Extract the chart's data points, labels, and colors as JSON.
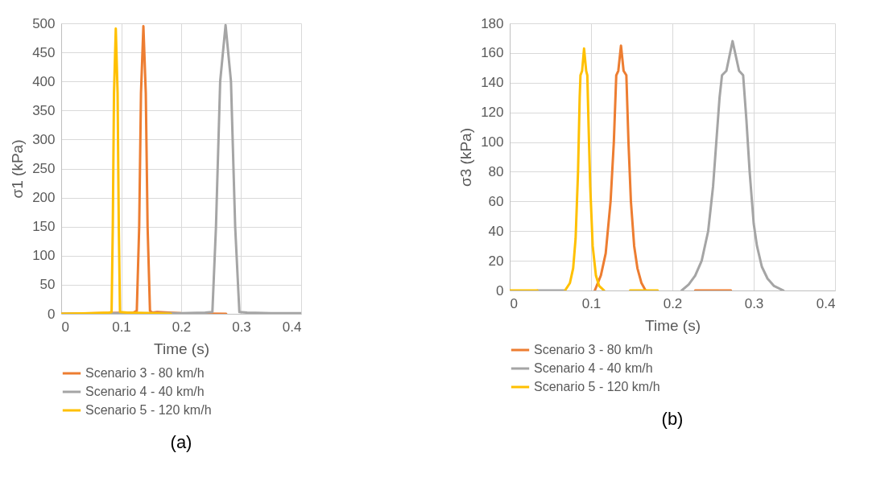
{
  "chart_data": [
    {
      "type": "line",
      "xlabel": "Time (s)",
      "ylabel": "σ1 (kPa)",
      "xlim": [
        0,
        0.4
      ],
      "xticks": [
        0,
        0.1,
        0.2,
        0.3,
        0.4
      ],
      "ylim": [
        0,
        500
      ],
      "yticks": [
        0,
        50,
        100,
        150,
        200,
        250,
        300,
        350,
        400,
        450,
        500
      ],
      "grid": true,
      "legend": "bottom",
      "annotations": [
        "(a)"
      ],
      "series": [
        {
          "name": "Scenario 3 - 80 km/h",
          "color": "#ed7d31",
          "x": [
            0,
            0.06,
            0.12,
            0.126,
            0.13,
            0.133,
            0.137,
            0.141,
            0.144,
            0.148,
            0.152,
            0.16,
            0.2,
            0.275
          ],
          "values": [
            0,
            1,
            2,
            5,
            150,
            380,
            495,
            380,
            150,
            5,
            2,
            3,
            1,
            0
          ]
        },
        {
          "name": "Scenario 4 - 40 km/h",
          "color": "#a5a5a5",
          "x": [
            0,
            0.1,
            0.2,
            0.24,
            0.252,
            0.258,
            0.265,
            0.274,
            0.283,
            0.29,
            0.297,
            0.31,
            0.35,
            0.4
          ],
          "values": [
            0,
            1,
            1,
            2,
            3,
            150,
            400,
            497,
            400,
            150,
            3,
            2,
            1,
            1
          ]
        },
        {
          "name": "Scenario 5 - 120 km/h",
          "color": "#ffc000",
          "x": [
            0,
            0.05,
            0.08,
            0.084,
            0.086,
            0.088,
            0.091,
            0.094,
            0.096,
            0.098,
            0.11,
            0.15,
            0.183
          ],
          "values": [
            0,
            1,
            2,
            3,
            150,
            380,
            491,
            380,
            150,
            3,
            2,
            1,
            0
          ]
        }
      ]
    },
    {
      "type": "line",
      "xlabel": "Time (s)",
      "ylabel": "σ3 (kPa)",
      "xlim": [
        0,
        0.4
      ],
      "xticks": [
        0,
        0.1,
        0.2,
        0.3,
        0.4
      ],
      "ylim": [
        0,
        180
      ],
      "yticks": [
        0,
        20,
        40,
        60,
        80,
        100,
        120,
        140,
        160,
        180
      ],
      "grid": true,
      "legend": "bottom",
      "annotations": [
        "(b)"
      ],
      "series": [
        {
          "name": "Scenario 3 - 80 km/h",
          "color": "#ed7d31",
          "x": [
            0.1046,
            0.112,
            0.118,
            0.124,
            0.128,
            0.131,
            0.1335,
            0.1368,
            0.14,
            0.1434,
            0.146,
            0.149,
            0.153,
            0.157,
            0.162,
            0.167,
            0.2,
            0.228,
            0.272
          ],
          "values": [
            0,
            10,
            25,
            60,
            100,
            145,
            148,
            165,
            148,
            145,
            100,
            60,
            30,
            15,
            5,
            0,
            null,
            0,
            0
          ]
        },
        {
          "name": "Scenario 4 - 40 km/h",
          "color": "#a5a5a5",
          "x": [
            0.034,
            0.068,
            0.14,
            0.2115,
            0.22,
            0.228,
            0.236,
            0.244,
            0.25,
            0.254,
            0.258,
            0.261,
            0.2664,
            0.274,
            0.282,
            0.287,
            0.291,
            0.295,
            0.3,
            0.304,
            0.31,
            0.317,
            0.325,
            0.3365
          ],
          "values": [
            0,
            0,
            null,
            0,
            4,
            10,
            20,
            40,
            70,
            100,
            130,
            145,
            148,
            168,
            148,
            145,
            115,
            80,
            45,
            30,
            16,
            8,
            3,
            0
          ]
        },
        {
          "name": "Scenario 5 - 120 km/h",
          "color": "#ffc000",
          "x": [
            0,
            0.034,
            0.05,
            0.068,
            0.074,
            0.078,
            0.081,
            0.084,
            0.086,
            0.087,
            0.089,
            0.0914,
            0.094,
            0.0954,
            0.097,
            0.099,
            0.102,
            0.106,
            0.11,
            0.116,
            0.13,
            0.148,
            0.182
          ],
          "values": [
            0,
            0,
            null,
            0,
            5,
            15,
            35,
            80,
            130,
            145,
            148,
            163,
            148,
            145,
            110,
            70,
            30,
            10,
            3,
            0,
            null,
            0,
            0
          ]
        }
      ]
    }
  ]
}
